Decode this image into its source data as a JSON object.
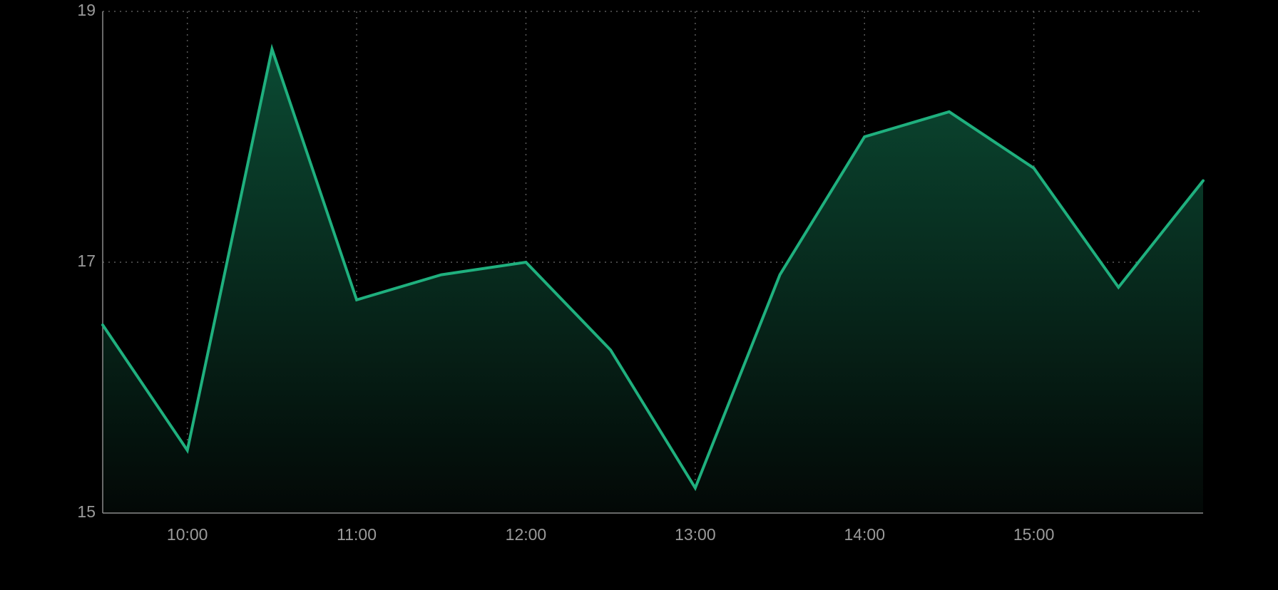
{
  "chart_data": {
    "type": "area",
    "title": "",
    "xlabel": "",
    "ylabel": "",
    "x": [
      "09:30",
      "10:00",
      "10:30",
      "11:00",
      "11:30",
      "12:00",
      "12:30",
      "13:00",
      "13:30",
      "14:00",
      "14:30",
      "15:00",
      "15:30",
      "16:00"
    ],
    "x_ticks": [
      "10:00",
      "11:00",
      "12:00",
      "13:00",
      "14:00",
      "15:00"
    ],
    "xlim": [
      "09:30",
      "16:00"
    ],
    "y_ticks": [
      15,
      17,
      19
    ],
    "ylim": [
      15,
      19
    ],
    "grid": true,
    "legend": "none",
    "series": [
      {
        "values": [
          16.5,
          15.5,
          18.7,
          16.7,
          16.9,
          17.0,
          16.3,
          15.2,
          16.9,
          18.0,
          18.2,
          17.75,
          16.8,
          17.65
        ]
      }
    ]
  },
  "colors": {
    "background": "#000000",
    "line": "#1fb07e",
    "fill_top": "#0b4a33",
    "fill_bottom": "#030806",
    "grid": "#5a5a5a",
    "axis": "#8a8a8a",
    "tick_text": "#9a9a9a"
  }
}
